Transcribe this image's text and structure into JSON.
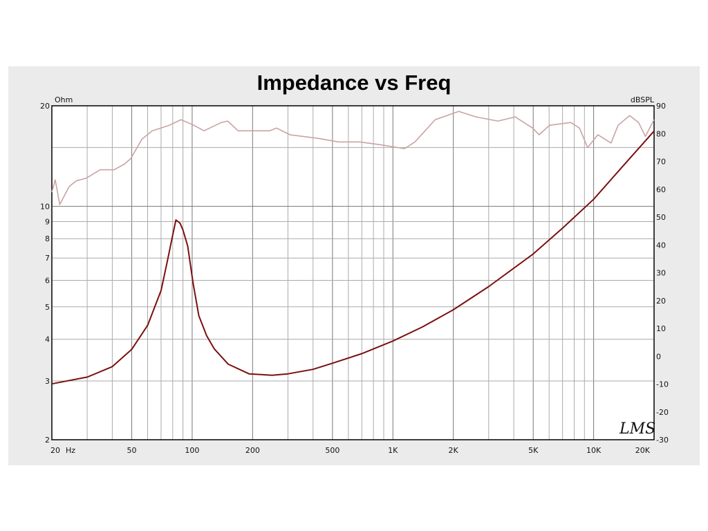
{
  "chart_data": {
    "type": "line",
    "title": "Impedance vs Freq",
    "xlabel": "Hz",
    "ylabel_left": "Ohm",
    "ylabel_right": "dBSPL",
    "xscale": "log",
    "xlim": [
      20,
      20000
    ],
    "ylim_left": [
      2,
      20
    ],
    "yscale_left": "log",
    "ylim_right": [
      -30,
      90
    ],
    "grid": true,
    "x_ticks": [
      {
        "v": 20,
        "label": "20"
      },
      {
        "v": 50,
        "label": "50"
      },
      {
        "v": 100,
        "label": "100"
      },
      {
        "v": 200,
        "label": "200"
      },
      {
        "v": 500,
        "label": "500"
      },
      {
        "v": 1000,
        "label": "1K"
      },
      {
        "v": 2000,
        "label": "2K"
      },
      {
        "v": 5000,
        "label": "5K"
      },
      {
        "v": 10000,
        "label": "10K"
      },
      {
        "v": 20000,
        "label": "20K"
      }
    ],
    "y_left_ticks": [
      {
        "v": 2,
        "label": "2"
      },
      {
        "v": 3,
        "label": "3"
      },
      {
        "v": 4,
        "label": "4"
      },
      {
        "v": 5,
        "label": "5"
      },
      {
        "v": 6,
        "label": "6"
      },
      {
        "v": 7,
        "label": "7"
      },
      {
        "v": 8,
        "label": "8"
      },
      {
        "v": 9,
        "label": "9"
      },
      {
        "v": 10,
        "label": "10"
      },
      {
        "v": 20,
        "label": "20"
      }
    ],
    "y_right_ticks": [
      -30,
      -20,
      -10,
      0,
      10,
      20,
      30,
      40,
      50,
      60,
      70,
      80,
      90
    ],
    "series": [
      {
        "name": "Impedance",
        "axis": "left",
        "color": "#7a0f0f",
        "x": [
          20,
          30,
          40,
          50,
          60,
          70,
          75,
          80,
          83,
          87,
          90,
          95,
          101,
          108,
          118,
          129,
          151,
          192,
          250,
          300,
          400,
          500,
          700,
          1000,
          1400,
          2000,
          3000,
          5000,
          7000,
          10000,
          14000,
          20000
        ],
        "y": [
          2.94,
          3.08,
          3.31,
          3.73,
          4.4,
          5.6,
          6.8,
          8.2,
          9.1,
          8.9,
          8.5,
          7.6,
          5.9,
          4.7,
          4.1,
          3.74,
          3.37,
          3.15,
          3.12,
          3.15,
          3.25,
          3.39,
          3.62,
          3.95,
          4.35,
          4.9,
          5.75,
          7.2,
          8.6,
          10.5,
          13.2,
          16.8
        ]
      },
      {
        "name": "SPL",
        "axis": "right",
        "color": "#c9a3a3",
        "x": [
          20,
          20.8,
          21.9,
          24.4,
          26.4,
          29.7,
          34.8,
          40.8,
          45.9,
          49.4,
          56.2,
          63.2,
          76.9,
          88,
          102,
          114.6,
          139.7,
          150.2,
          169.6,
          243,
          263,
          307,
          423,
          536,
          683,
          871,
          1144,
          1287,
          1446,
          1624,
          2128,
          2600,
          3330,
          4065,
          4964,
          5353,
          6030,
          7690,
          8500,
          9330,
          10500,
          12200,
          13240,
          15100,
          16740,
          18100,
          20000
        ],
        "y": [
          59,
          63.4,
          54.5,
          61,
          63,
          64,
          67,
          67,
          69,
          71,
          78,
          81,
          83,
          85,
          83,
          81,
          84,
          84.5,
          81,
          81,
          82,
          79.6,
          78.3,
          77,
          77,
          76,
          74.6,
          77,
          81,
          85,
          88,
          86,
          84.5,
          86,
          82,
          79.6,
          83,
          84,
          82,
          75,
          79.6,
          76.6,
          83,
          86.5,
          84,
          79,
          85
        ]
      }
    ],
    "watermark": "LMS"
  }
}
